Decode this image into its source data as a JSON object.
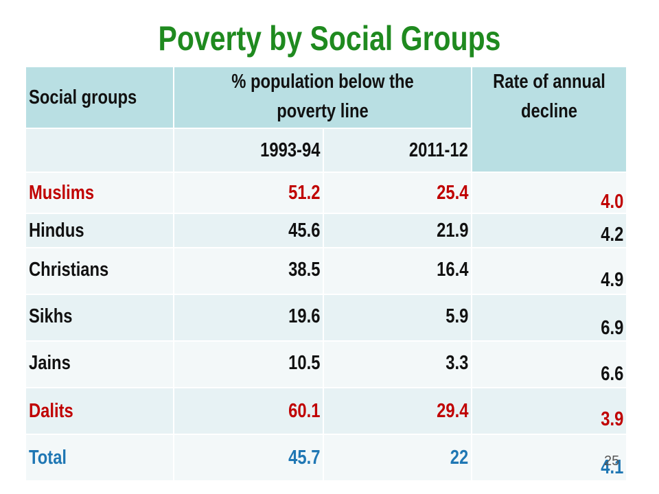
{
  "title": "Poverty by Social Groups",
  "table": {
    "headers": {
      "col1": "Social groups",
      "col2_line1": "% population below the",
      "col2_line2": "poverty line",
      "col3_line1": "Rate of annual",
      "col3_line2": "decline"
    },
    "sub_headers": {
      "year1": "1993-94",
      "year2": "2011-12"
    },
    "rows": [
      {
        "group": "Muslims",
        "y1993": "51.2",
        "y2011": "25.4",
        "decline": "4.0"
      },
      {
        "group": "Hindus",
        "y1993": "45.6",
        "y2011": "21.9",
        "decline": "4.2"
      },
      {
        "group": "Christians",
        "y1993": "38.5",
        "y2011": "16.4",
        "decline": "4.9"
      },
      {
        "group": "Sikhs",
        "y1993": "19.6",
        "y2011": "5.9",
        "decline": "6.9"
      },
      {
        "group": "Jains",
        "y1993": "10.5",
        "y2011": "3.3",
        "decline": "6.6"
      },
      {
        "group": "Dalits",
        "y1993": "60.1",
        "y2011": "29.4",
        "decline": "3.9"
      },
      {
        "group": "Total",
        "y1993": "45.7",
        "y2011": "22",
        "decline": "4.1"
      }
    ]
  },
  "page_number": "25",
  "colors": {
    "title": "#1f8a1f",
    "header_bg": "#b9dfe3",
    "highlight_red": "#c00000",
    "highlight_blue": "#1f77b4"
  }
}
